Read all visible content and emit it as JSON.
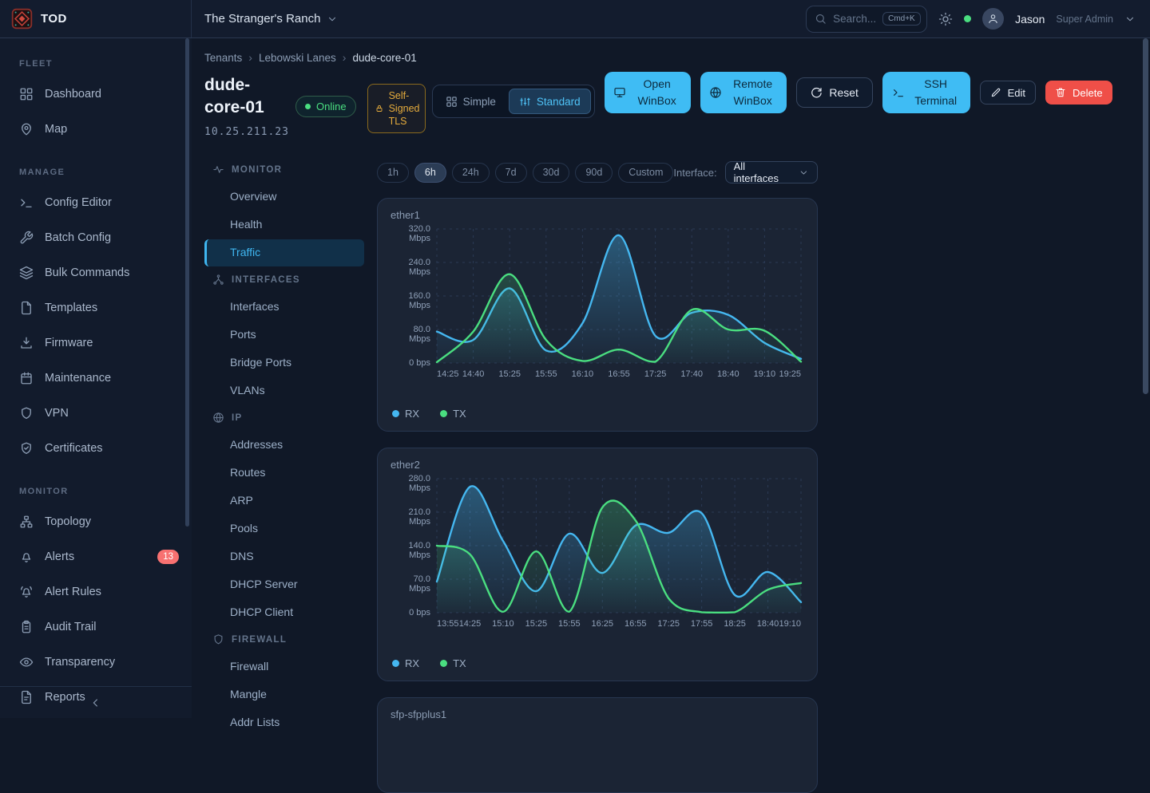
{
  "brand": {
    "name": "TOD"
  },
  "topbar": {
    "tenant": "The Stranger's Ranch",
    "search_placeholder": "Search...",
    "search_kbd": "Cmd+K",
    "user_name": "Jason",
    "user_role": "Super Admin"
  },
  "sidebar": {
    "sections": [
      {
        "label": "FLEET",
        "items": [
          {
            "label": "Dashboard",
            "icon": "grid"
          },
          {
            "label": "Map",
            "icon": "map-pin"
          }
        ]
      },
      {
        "label": "MANAGE",
        "items": [
          {
            "label": "Config Editor",
            "icon": "terminal"
          },
          {
            "label": "Batch Config",
            "icon": "wrench"
          },
          {
            "label": "Bulk Commands",
            "icon": "layers"
          },
          {
            "label": "Templates",
            "icon": "file"
          },
          {
            "label": "Firmware",
            "icon": "download"
          },
          {
            "label": "Maintenance",
            "icon": "calendar"
          },
          {
            "label": "VPN",
            "icon": "shield"
          },
          {
            "label": "Certificates",
            "icon": "shield-check"
          }
        ]
      },
      {
        "label": "MONITOR",
        "items": [
          {
            "label": "Topology",
            "icon": "topology"
          },
          {
            "label": "Alerts",
            "icon": "bell",
            "badge": "13"
          },
          {
            "label": "Alert Rules",
            "icon": "bell-ring"
          },
          {
            "label": "Audit Trail",
            "icon": "clipboard"
          },
          {
            "label": "Transparency",
            "icon": "eye"
          },
          {
            "label": "Reports",
            "icon": "file-text"
          }
        ]
      }
    ]
  },
  "breadcrumb": [
    "Tenants",
    "Lebowski Lanes",
    "dude-core-01"
  ],
  "device": {
    "name": "dude-core-01",
    "ip": "10.25.211.23",
    "status": "Online",
    "tls_badge": "Self-Signed TLS"
  },
  "view_toggle": {
    "simple": "Simple",
    "standard": "Standard",
    "active": "Standard"
  },
  "actions": {
    "open_winbox": "Open WinBox",
    "remote_winbox": "Remote WinBox",
    "reset": "Reset",
    "ssh_terminal": "SSH Terminal",
    "edit": "Edit",
    "delete": "Delete"
  },
  "subnav": {
    "active": "Traffic",
    "groups": [
      {
        "label": "MONITOR",
        "icon": "activity",
        "items": [
          "Overview",
          "Health",
          "Traffic"
        ]
      },
      {
        "label": "INTERFACES",
        "icon": "share-net",
        "items": [
          "Interfaces",
          "Ports",
          "Bridge Ports",
          "VLANs"
        ]
      },
      {
        "label": "IP",
        "icon": "globe",
        "items": [
          "Addresses",
          "Routes",
          "ARP",
          "Pools",
          "DNS",
          "DHCP Server",
          "DHCP Client"
        ]
      },
      {
        "label": "FIREWALL",
        "icon": "shield",
        "items": [
          "Firewall",
          "Mangle",
          "Addr Lists"
        ]
      }
    ]
  },
  "time_ranges": {
    "options": [
      "1h",
      "6h",
      "24h",
      "7d",
      "30d",
      "90d",
      "Custom"
    ],
    "active": "6h"
  },
  "interface_filter": {
    "label": "Interface:",
    "value": "All interfaces"
  },
  "colors": {
    "accent": "#3fb6f0",
    "rx": "#45b7f0",
    "tx": "#4ade80",
    "primary_button": "#3fbcf4",
    "danger": "#ef4f48",
    "warning": "#e3aa3c",
    "online": "#4ade80",
    "alert_badge": "#f87171"
  },
  "chart_data": [
    {
      "type": "area",
      "title": "ether1",
      "x": [
        "14:25",
        "14:40",
        "15:25",
        "15:55",
        "16:10",
        "16:55",
        "17:25",
        "17:40",
        "18:40",
        "19:10",
        "19:25"
      ],
      "ylim": [
        0,
        320
      ],
      "yticks": [
        {
          "v": 320,
          "label": "320.0",
          "unit": "Mbps"
        },
        {
          "v": 240,
          "label": "240.0",
          "unit": "Mbps"
        },
        {
          "v": 160,
          "label": "160.0",
          "unit": "Mbps"
        },
        {
          "v": 80,
          "label": "80.0",
          "unit": "Mbps"
        },
        {
          "v": 0,
          "label": "0 bps",
          "unit": ""
        }
      ],
      "series": [
        {
          "name": "RX",
          "color": "#45b7f0",
          "values": [
            75,
            55,
            178,
            30,
            95,
            305,
            65,
            120,
            115,
            48,
            10
          ]
        },
        {
          "name": "TX",
          "color": "#4ade80",
          "values": [
            2,
            75,
            212,
            55,
            5,
            32,
            3,
            127,
            80,
            77,
            3
          ]
        }
      ],
      "xlabel": "",
      "ylabel": "",
      "grid": true,
      "legend": [
        "RX",
        "TX"
      ],
      "legend_position": "bottom-left"
    },
    {
      "type": "area",
      "title": "ether2",
      "x": [
        "13:55",
        "14:25",
        "15:10",
        "15:25",
        "15:55",
        "16:25",
        "16:55",
        "17:25",
        "17:55",
        "18:25",
        "18:40",
        "19:10"
      ],
      "ylim": [
        0,
        280
      ],
      "yticks": [
        {
          "v": 280,
          "label": "280.0",
          "unit": "Mbps"
        },
        {
          "v": 210,
          "label": "210.0",
          "unit": "Mbps"
        },
        {
          "v": 140,
          "label": "140.0",
          "unit": "Mbps"
        },
        {
          "v": 70,
          "label": "70.0",
          "unit": "Mbps"
        },
        {
          "v": 0,
          "label": "0 bps",
          "unit": ""
        }
      ],
      "series": [
        {
          "name": "RX",
          "color": "#45b7f0",
          "values": [
            65,
            263,
            150,
            45,
            165,
            83,
            182,
            167,
            208,
            37,
            85,
            22
          ]
        },
        {
          "name": "TX",
          "color": "#4ade80",
          "values": [
            140,
            122,
            2,
            128,
            2,
            220,
            193,
            30,
            1,
            1,
            48,
            62
          ]
        }
      ],
      "xlabel": "",
      "ylabel": "",
      "grid": true,
      "legend": [
        "RX",
        "TX"
      ],
      "legend_position": "bottom-left"
    },
    {
      "type": "area",
      "title": "sfp-sfpplus1",
      "x": [],
      "series": [],
      "partial": true
    }
  ]
}
